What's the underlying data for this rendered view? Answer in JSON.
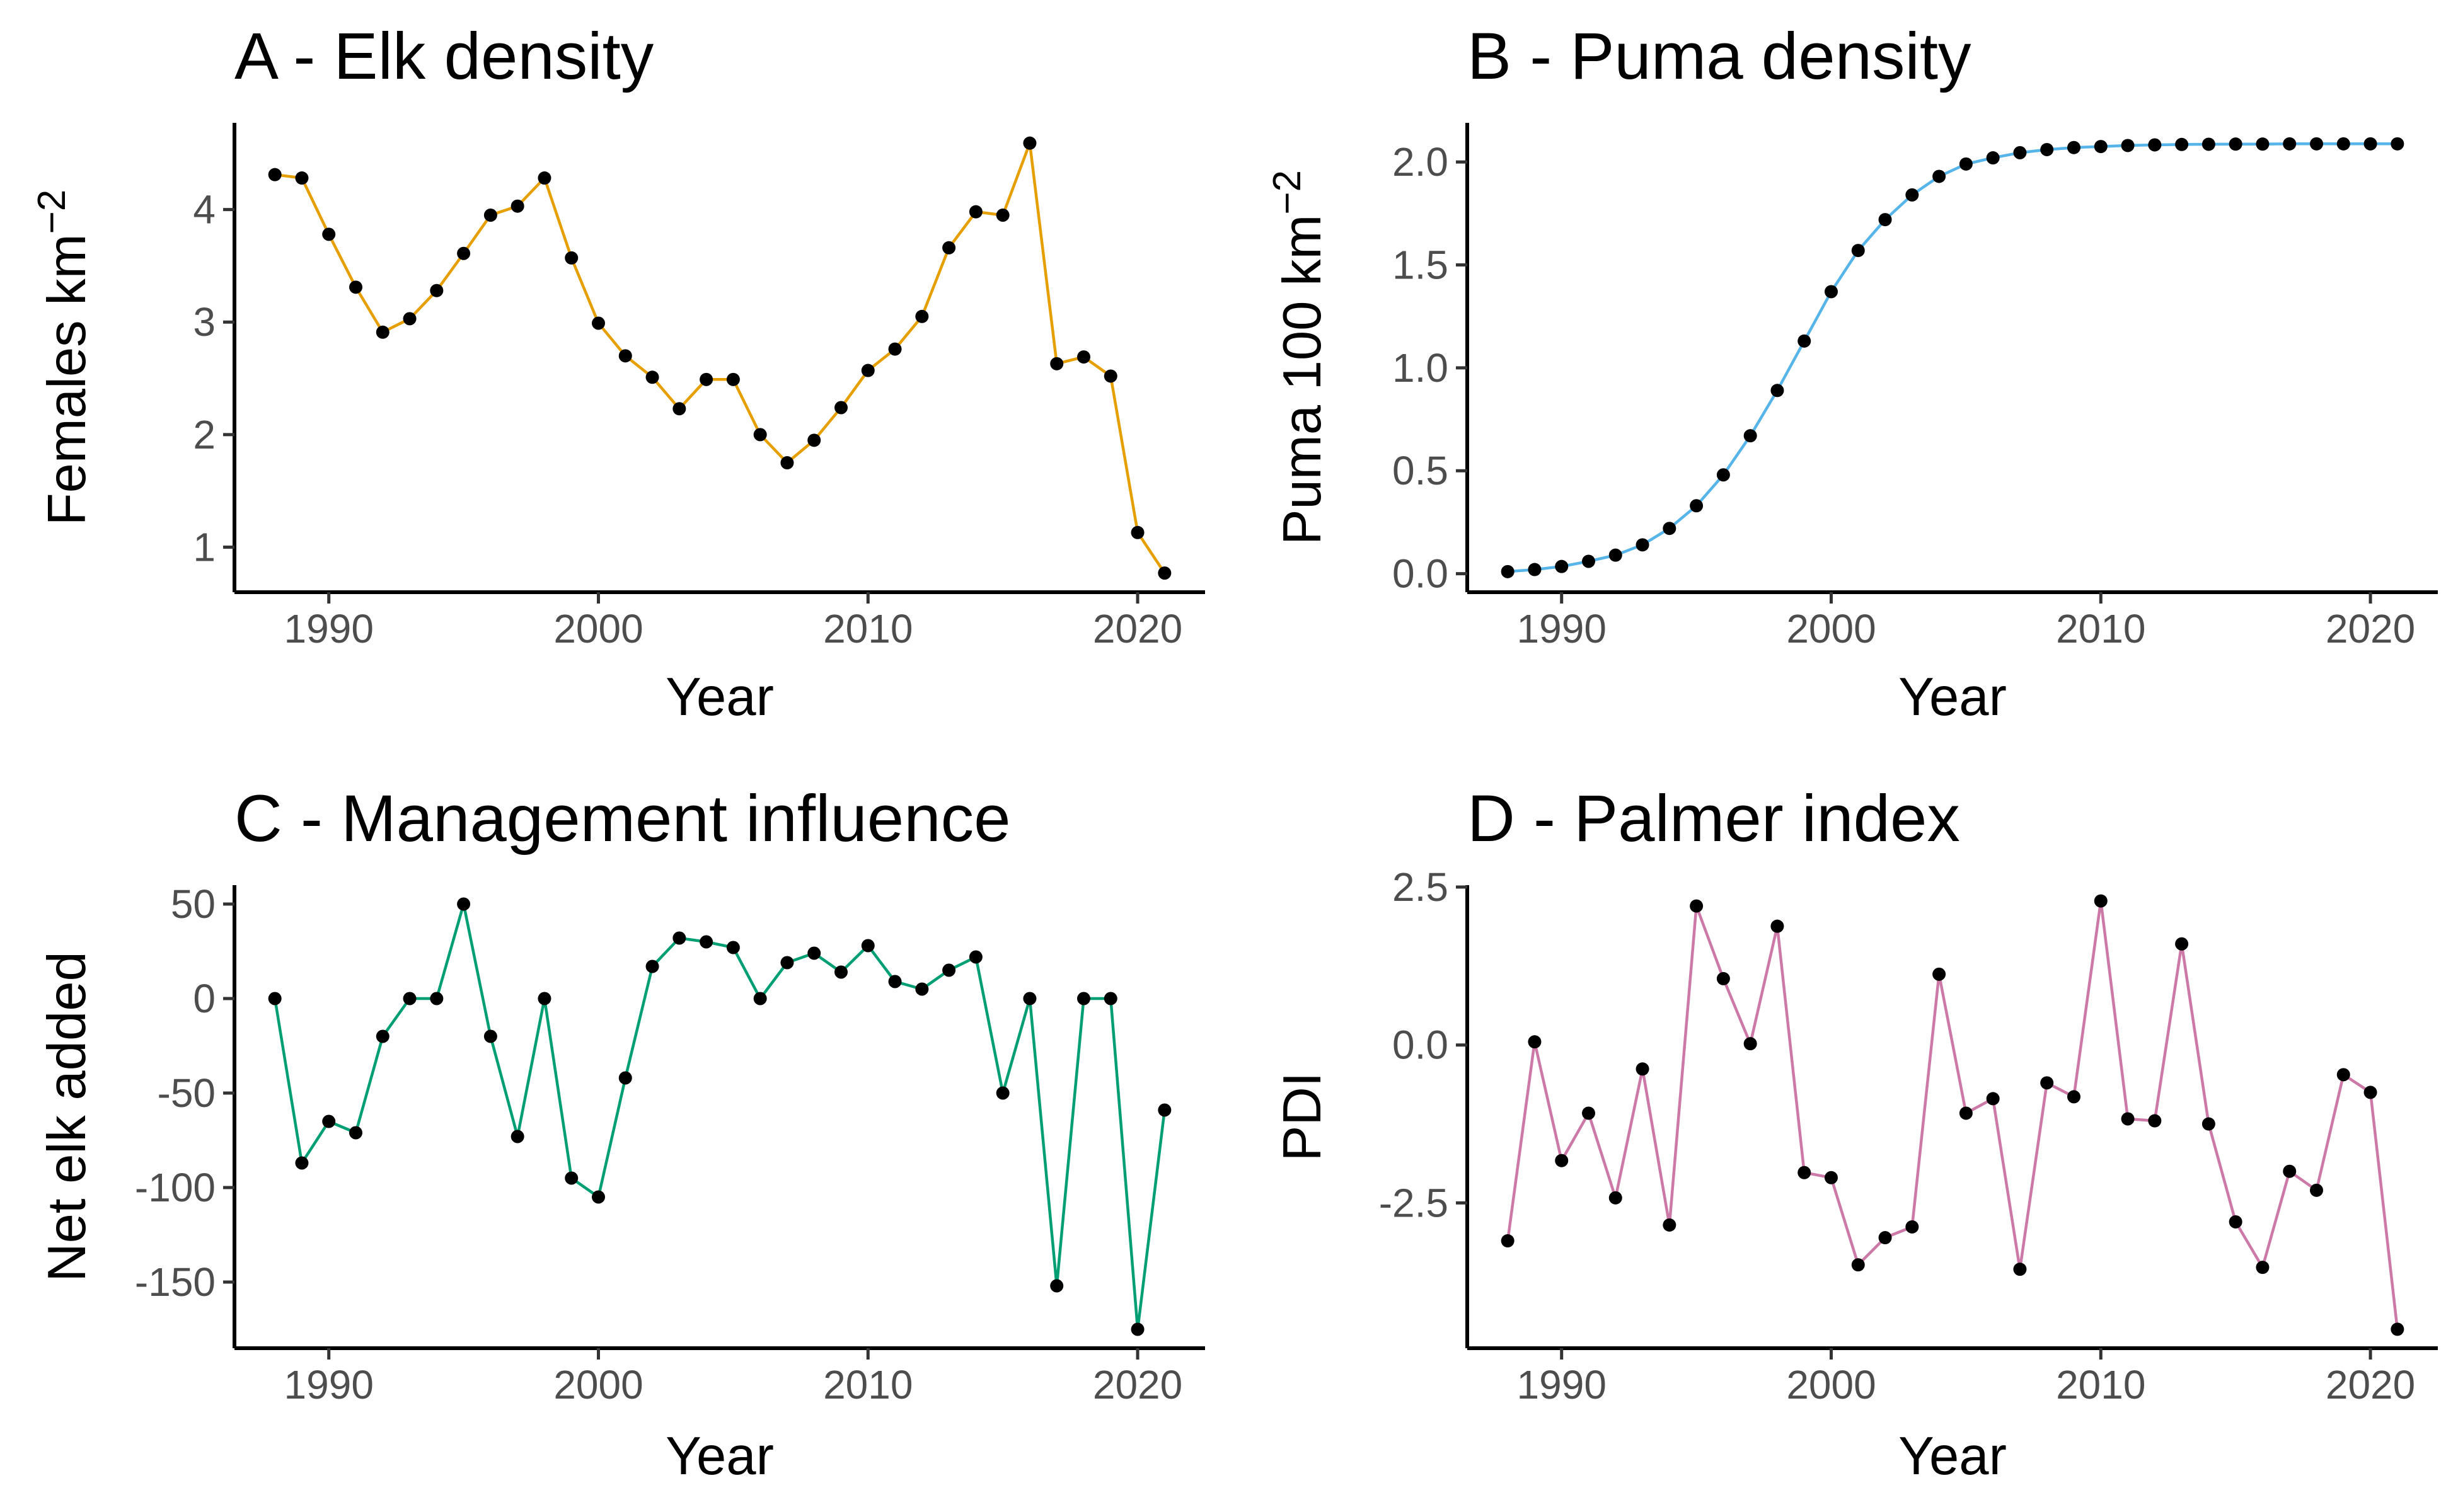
{
  "chart_data": [
    {
      "type": "line",
      "title": "A - Elk density",
      "xlabel": "Year",
      "ylabel": "Females km",
      "ylabel_superscript": "−2",
      "xlim": [
        1986.5,
        2022.5
      ],
      "ylim": [
        0.6,
        4.77
      ],
      "xticks": [
        1990,
        2000,
        2010,
        2020
      ],
      "yticks": [
        1,
        2,
        3,
        4
      ],
      "ytick_labels": [
        "1",
        "2",
        "3",
        "4"
      ],
      "color": "#E69F00",
      "grid": false,
      "x": [
        1988,
        1989,
        1990,
        1991,
        1992,
        1993,
        1994,
        1995,
        1996,
        1997,
        1998,
        1999,
        2000,
        2001,
        2002,
        2003,
        2004,
        2005,
        2006,
        2007,
        2008,
        2009,
        2010,
        2011,
        2012,
        2013,
        2014,
        2015,
        2016,
        2017,
        2018,
        2019,
        2020,
        2021
      ],
      "values": [
        4.31,
        4.28,
        3.78,
        3.31,
        2.91,
        3.03,
        3.28,
        3.61,
        3.95,
        4.03,
        4.28,
        3.57,
        2.99,
        2.7,
        2.51,
        2.23,
        2.49,
        2.49,
        2.0,
        1.75,
        1.95,
        2.24,
        2.57,
        2.76,
        3.05,
        3.66,
        3.98,
        3.95,
        4.59,
        2.63,
        2.69,
        2.52,
        1.13,
        0.77
      ]
    },
    {
      "type": "line",
      "title": "B - Puma density",
      "xlabel": "Year",
      "ylabel": "Puma 100 km",
      "ylabel_superscript": "−2",
      "xlim": [
        1986.5,
        2022.5
      ],
      "ylim": [
        -0.09,
        2.19
      ],
      "xticks": [
        1990,
        2000,
        2010,
        2020
      ],
      "yticks": [
        0,
        0.5,
        1,
        1.5,
        2
      ],
      "ytick_labels": [
        "0.0",
        "0.5",
        "1.0",
        "1.5",
        "2.0"
      ],
      "color": "#56B4E9",
      "grid": false,
      "x": [
        1988,
        1989,
        1990,
        1991,
        1992,
        1993,
        1994,
        1995,
        1996,
        1997,
        1998,
        1999,
        2000,
        2001,
        2002,
        2003,
        2004,
        2005,
        2006,
        2007,
        2008,
        2009,
        2010,
        2011,
        2012,
        2013,
        2014,
        2015,
        2016,
        2017,
        2018,
        2019,
        2020,
        2021
      ],
      "values": [
        0.01,
        0.02,
        0.035,
        0.06,
        0.09,
        0.14,
        0.22,
        0.33,
        0.48,
        0.67,
        0.89,
        1.13,
        1.37,
        1.57,
        1.72,
        1.84,
        1.93,
        1.99,
        2.02,
        2.045,
        2.06,
        2.07,
        2.075,
        2.08,
        2.083,
        2.085,
        2.086,
        2.087,
        2.087,
        2.088,
        2.088,
        2.088,
        2.088,
        2.088
      ]
    },
    {
      "type": "line",
      "title": "C - Management influence",
      "xlabel": "Year",
      "ylabel": "Net elk added",
      "xlim": [
        1986.5,
        2022.5
      ],
      "ylim": [
        -185,
        60
      ],
      "xticks": [
        1990,
        2000,
        2010,
        2020
      ],
      "yticks": [
        50,
        0,
        -50,
        -100,
        -150
      ],
      "ytick_labels": [
        "50",
        "0",
        "-50",
        "-100",
        "-150"
      ],
      "color": "#009E73",
      "grid": false,
      "x": [
        1988,
        1989,
        1990,
        1991,
        1992,
        1993,
        1994,
        1995,
        1996,
        1997,
        1998,
        1999,
        2000,
        2001,
        2002,
        2003,
        2004,
        2005,
        2006,
        2007,
        2008,
        2009,
        2010,
        2011,
        2012,
        2013,
        2014,
        2015,
        2016,
        2017,
        2018,
        2019,
        2020,
        2021
      ],
      "values": [
        0,
        -87,
        -65,
        -71,
        -20,
        0,
        0,
        50,
        -20,
        -73,
        0,
        -95,
        -105,
        -42,
        17,
        32,
        30,
        27,
        0,
        19,
        24,
        14,
        28,
        9,
        5,
        15,
        22,
        -50,
        0,
        -152,
        0,
        0,
        -175,
        -59
      ]
    },
    {
      "type": "line",
      "title": "D - Palmer index",
      "xlabel": "Year",
      "ylabel": "PDI",
      "xlim": [
        1986.5,
        2022.5
      ],
      "ylim": [
        -4.8,
        2.53
      ],
      "xticks": [
        1990,
        2000,
        2010,
        2020
      ],
      "yticks": [
        2.5,
        0,
        -2.5
      ],
      "ytick_labels": [
        "2.5",
        "0.0",
        "-2.5"
      ],
      "color": "#CC79A7",
      "grid": false,
      "x": [
        1988,
        1989,
        1990,
        1991,
        1992,
        1993,
        1994,
        1995,
        1996,
        1997,
        1998,
        1999,
        2000,
        2001,
        2002,
        2003,
        2004,
        2005,
        2006,
        2007,
        2008,
        2009,
        2010,
        2011,
        2012,
        2013,
        2014,
        2015,
        2016,
        2017,
        2018,
        2019,
        2020,
        2021
      ],
      "values": [
        -3.1,
        0.05,
        -1.83,
        -1.08,
        -2.42,
        -0.38,
        -2.85,
        2.2,
        1.05,
        0.02,
        1.88,
        -2.02,
        -2.1,
        -3.48,
        -3.05,
        -2.88,
        1.12,
        -1.08,
        -0.85,
        -3.55,
        -0.6,
        -0.82,
        2.28,
        -1.17,
        -1.2,
        1.6,
        -1.25,
        -2.8,
        -3.52,
        -2.0,
        -2.3,
        -0.47,
        -0.75,
        -4.5
      ]
    }
  ]
}
